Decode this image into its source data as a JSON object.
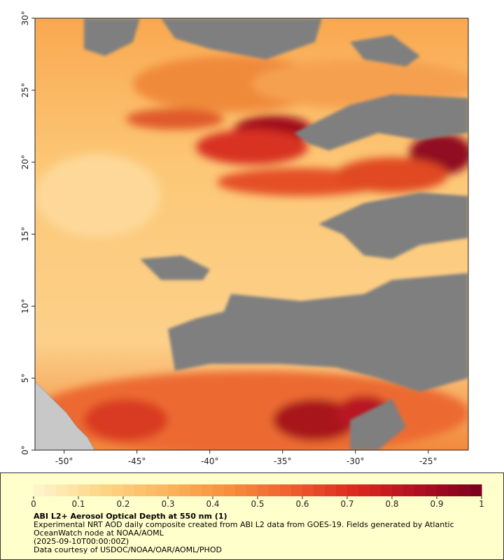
{
  "map": {
    "xlim": [
      -52,
      -22.25
    ],
    "ylim": [
      0,
      30
    ],
    "xticks": [
      {
        "value": -50,
        "label": "-50°"
      },
      {
        "value": -45,
        "label": "-45°"
      },
      {
        "value": -40,
        "label": "-40°"
      },
      {
        "value": -35,
        "label": "-35°"
      },
      {
        "value": -30,
        "label": "-30°"
      },
      {
        "value": -25,
        "label": "-25°"
      }
    ],
    "yticks": [
      {
        "value": 0,
        "label": "0°"
      },
      {
        "value": 5,
        "label": "5°"
      },
      {
        "value": 10,
        "label": "10°"
      },
      {
        "value": 15,
        "label": "15°"
      },
      {
        "value": 20,
        "label": "20°"
      },
      {
        "value": 25,
        "label": "25°"
      },
      {
        "value": 30,
        "label": "30°"
      }
    ]
  },
  "colorbar": {
    "lim": [
      0,
      1
    ],
    "ticks": [
      0,
      0.1,
      0.2,
      0.3,
      0.4,
      0.5,
      0.6,
      0.7,
      0.8,
      0.9,
      1
    ],
    "colors": [
      "#fff6d0",
      "#fdd88a",
      "#fbb860",
      "#f7913f",
      "#ee6030",
      "#dd2a1f",
      "#b00e22",
      "#7a0020"
    ]
  },
  "caption": {
    "title": "ABI L2+ Aerosol Optical Depth at 550 nm (1)",
    "lines": [
      "Experimental NRT AOD daily composite created from ABI L2 data from GOES-19. Fields generated by Atlantic OceanWatch node at NOAA/AOML",
      "(2025-09-10T00:00:00Z)",
      "Data courtesy of USDOC/NOAA/OAR/AOML/PHOD"
    ]
  }
}
